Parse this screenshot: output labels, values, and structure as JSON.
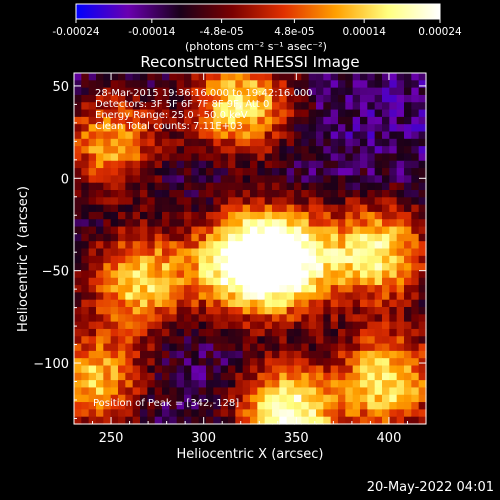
{
  "chart_data": [
    {
      "type": "colorbar",
      "ticks": [
        "-0.00024",
        "-0.00014",
        "-4.8e-05",
        "4.8e-05",
        "0.00014",
        "0.00024"
      ],
      "tick_values": [
        -0.00024,
        -0.00014,
        -4.8e-05,
        4.8e-05,
        0.00014,
        0.00024
      ],
      "range": [
        -0.00024,
        0.00024
      ],
      "label": "(photons cm⁻² s⁻¹ asec⁻²)",
      "colors": [
        "#0000ff",
        "#6a00b0",
        "#1a001a",
        "#7a0000",
        "#e03000",
        "#ffa000",
        "#ffff80",
        "#ffffff"
      ]
    },
    {
      "type": "heatmap",
      "title": "Reconstructed RHESSI Image",
      "xlabel": "Heliocentric X (arcsec)",
      "ylabel": "Heliocentric Y (arcsec)",
      "xlim": [
        230,
        420
      ],
      "ylim": [
        -133,
        57
      ],
      "xticks": [
        250,
        300,
        350,
        400
      ],
      "yticks": [
        50,
        0,
        -50,
        -100
      ],
      "ytick_labels": [
        "50",
        "0",
        "−50",
        "−100"
      ],
      "annotations": [
        "28-Mar-2015 19:36:16.000 to 19:42:16.000",
        "Detectors: 3F 5F 6F 7F 8F 9F, Att 0",
        "Energy Range: 25.0 - 50.0 keV",
        "Clean     Total counts: 7.11E+03"
      ],
      "peak_label": "Position of Peak = [342,-128]",
      "peak_xy": [
        342,
        -128
      ],
      "bright_regions": [
        {
          "x": 320,
          "y": 40,
          "level": 0.85
        },
        {
          "x": 345,
          "y": -45,
          "level": 0.95
        },
        {
          "x": 320,
          "y": -45,
          "level": 0.9
        },
        {
          "x": 395,
          "y": -40,
          "level": 0.85
        },
        {
          "x": 265,
          "y": -55,
          "level": 0.8
        },
        {
          "x": 345,
          "y": -128,
          "level": 1.0
        },
        {
          "x": 400,
          "y": -110,
          "level": 0.85
        },
        {
          "x": 240,
          "y": -110,
          "level": 0.75
        },
        {
          "x": 250,
          "y": 20,
          "level": 0.7
        }
      ]
    }
  ],
  "footer": {
    "date": "20-May-2022 04:01"
  }
}
